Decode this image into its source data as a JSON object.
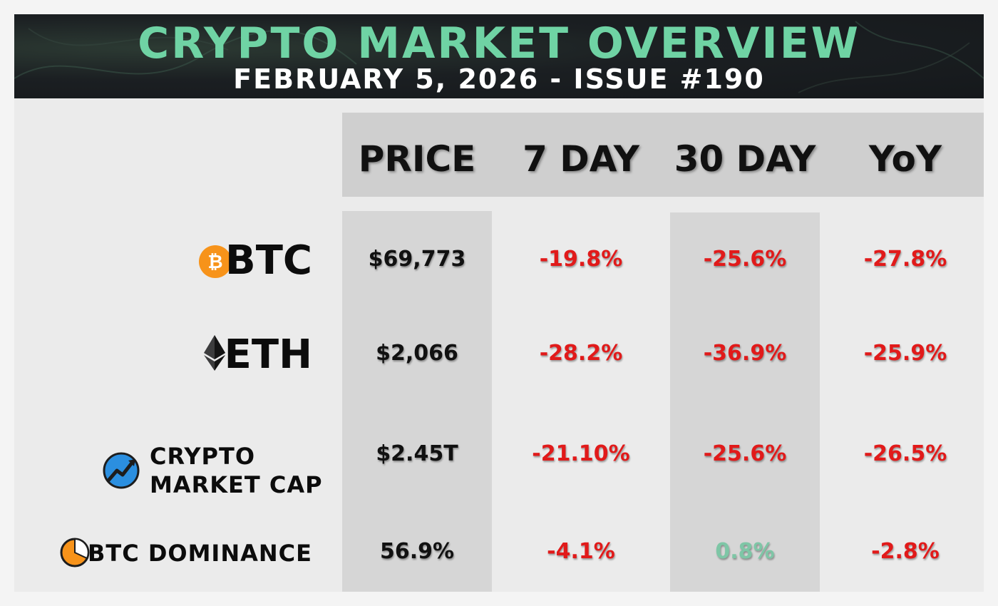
{
  "header": {
    "title": "CRYPTO MARKET OVERVIEW",
    "subtitle": "FEBRUARY 5, 2026 - ISSUE #190"
  },
  "columns": [
    "PRICE",
    "7 DAY",
    "30 DAY",
    "YoY"
  ],
  "rows": [
    {
      "label": "BTC",
      "icon": "bitcoin-icon",
      "price": "$69,773",
      "d7": "-19.8%",
      "d30": "-25.6%",
      "yoy": "-27.8%"
    },
    {
      "label": "ETH",
      "icon": "ethereum-icon",
      "price": "$2,066",
      "d7": "-28.2%",
      "d30": "-36.9%",
      "yoy": "-25.9%"
    },
    {
      "label_line1": "CRYPTO",
      "label_line2": "MARKET CAP",
      "icon": "market-cap-chart-icon",
      "price": "$2.45T",
      "d7": "-21.10%",
      "d30": "-25.6%",
      "yoy": "-26.5%"
    },
    {
      "label": "BTC DOMINANCE",
      "icon": "pie-chart-icon",
      "price": "56.9%",
      "d7": "-4.1%",
      "d30": "0.8%",
      "yoy": "-2.8%"
    }
  ],
  "colors": {
    "title": "#6fd3a4",
    "negative": "#e11a1a",
    "positive": "#7ec6a6",
    "bitcoin": "#f7931a"
  }
}
